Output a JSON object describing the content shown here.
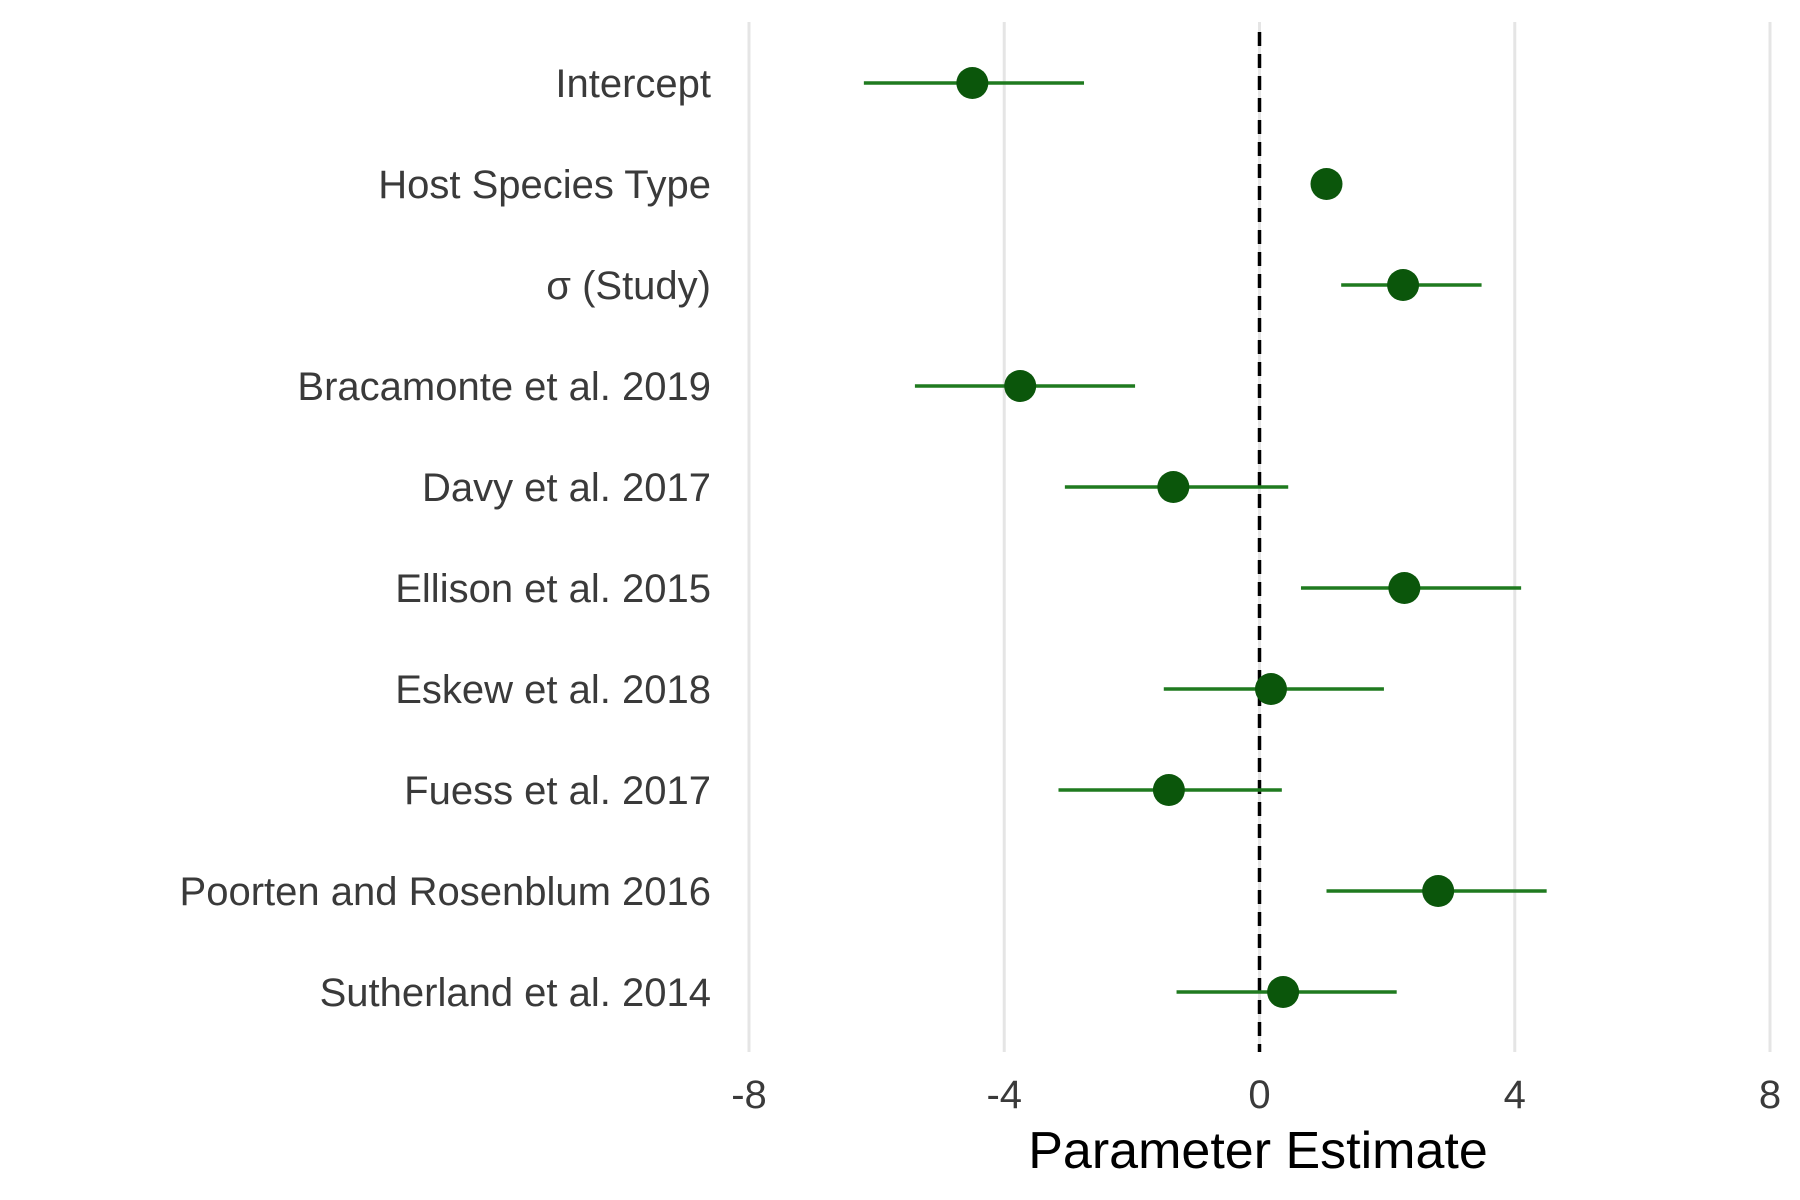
{
  "chart_data": {
    "type": "scatter",
    "subtype": "forest-plot",
    "title": "",
    "xlabel": "Parameter Estimate",
    "ylabel": "",
    "xlim": [
      -8,
      8
    ],
    "xticks": [
      -8,
      -4,
      0,
      4,
      8
    ],
    "xtick_labels": [
      "-8",
      "-4",
      "0",
      "4",
      "8"
    ],
    "grid": "vertical major gridlines only",
    "reference_line": {
      "x": 0,
      "style": "dashed",
      "color": "#000000"
    },
    "colors": {
      "point": "#0b560b",
      "interval": "#1f7a1f",
      "grid": "#e5e5e5"
    },
    "categories": [
      "Intercept",
      "Host Species Type",
      "σ (Study)",
      "Bracamonte et al. 2019",
      "Davy et al. 2017",
      "Ellison et al. 2015",
      "Eskew et al. 2018",
      "Fuess et al. 2017",
      "Poorten and Rosenblum 2016",
      "Sutherland et al. 2014"
    ],
    "estimates": [
      -4.5,
      1.05,
      2.25,
      -3.75,
      -1.35,
      2.27,
      0.18,
      -1.42,
      2.8,
      0.37
    ],
    "lower": [
      -6.2,
      null,
      1.28,
      -5.4,
      -3.05,
      0.65,
      -1.5,
      -3.15,
      1.05,
      -1.3
    ],
    "upper": [
      -2.75,
      null,
      3.48,
      -1.95,
      0.45,
      4.1,
      1.95,
      0.35,
      4.5,
      2.15
    ]
  }
}
